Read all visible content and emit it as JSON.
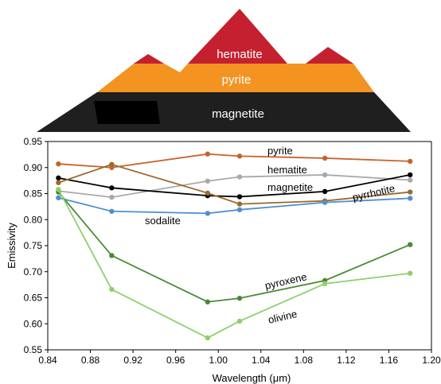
{
  "diagram": {
    "layers": [
      {
        "label": "hematite",
        "color": "#c4202f",
        "label_color": "#ffffff"
      },
      {
        "label": "pyrite",
        "color": "#f39322",
        "label_color": "#ffffff"
      },
      {
        "label": "magnetite",
        "color": "#1f1f1f",
        "label_color": "#ffffff"
      }
    ]
  },
  "chart_data": {
    "type": "line",
    "title": "",
    "xlabel": "Wavelength (μm)",
    "ylabel": "Emissivity",
    "xlim": [
      0.84,
      1.2
    ],
    "ylim": [
      0.55,
      0.95
    ],
    "xticks": [
      "0.84",
      "0.88",
      "0.92",
      "0.96",
      "1.00",
      "1.04",
      "1.08",
      "1.12",
      "1.16",
      "1.20"
    ],
    "yticks": [
      "0.55",
      "0.60",
      "0.65",
      "0.70",
      "0.75",
      "0.80",
      "0.85",
      "0.90",
      "0.95"
    ],
    "grid": false,
    "legend": "inline labels",
    "series": [
      {
        "name": "pyrite",
        "color": "#c8622a",
        "x": [
          0.85,
          0.9,
          0.99,
          1.02,
          1.1,
          1.18
        ],
        "y": [
          0.907,
          0.9,
          0.926,
          0.922,
          0.918,
          0.912
        ]
      },
      {
        "name": "hematite",
        "color": "#a9a9a9",
        "x": [
          0.85,
          0.9,
          0.99,
          1.02,
          1.1,
          1.18
        ],
        "y": [
          0.855,
          0.843,
          0.874,
          0.882,
          0.886,
          0.876
        ]
      },
      {
        "name": "magnetite",
        "color": "#000000",
        "x": [
          0.85,
          0.9,
          0.99,
          1.02,
          1.1,
          1.18
        ],
        "y": [
          0.88,
          0.861,
          0.846,
          0.844,
          0.854,
          0.886
        ]
      },
      {
        "name": "pyrrhotite",
        "color": "#9c6a2e",
        "x": [
          0.85,
          0.9,
          0.99,
          1.02,
          1.1,
          1.18
        ],
        "y": [
          0.871,
          0.906,
          0.851,
          0.83,
          0.836,
          0.853
        ]
      },
      {
        "name": "sodalite",
        "color": "#4f8fd0",
        "x": [
          0.85,
          0.9,
          0.99,
          1.02,
          1.1,
          1.18
        ],
        "y": [
          0.842,
          0.816,
          0.812,
          0.819,
          0.833,
          0.841
        ]
      },
      {
        "name": "pyroxene",
        "color": "#4a8a32",
        "x": [
          0.85,
          0.9,
          0.99,
          1.02,
          1.1,
          1.18
        ],
        "y": [
          0.853,
          0.731,
          0.642,
          0.649,
          0.683,
          0.752
        ]
      },
      {
        "name": "olivine",
        "color": "#8fd06a",
        "x": [
          0.85,
          0.9,
          0.99,
          1.02,
          1.1,
          1.18
        ],
        "y": [
          0.858,
          0.666,
          0.573,
          0.605,
          0.677,
          0.697
        ]
      }
    ]
  }
}
